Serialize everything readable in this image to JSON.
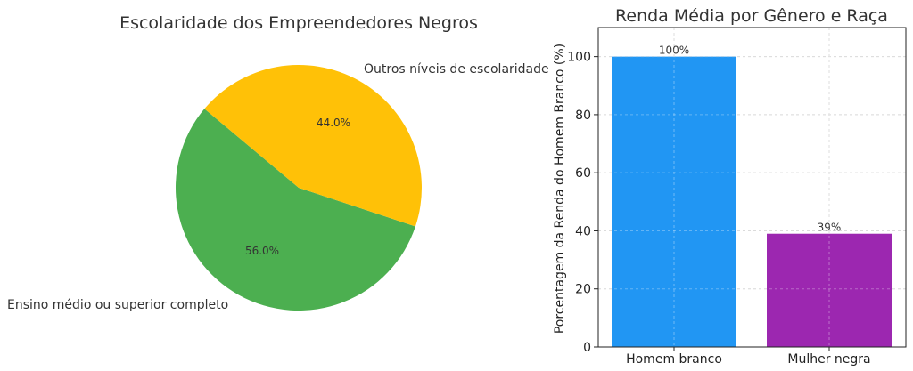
{
  "chart_data": [
    {
      "type": "pie",
      "title": "Escolaridade dos Empreendedores Negros",
      "labels": [
        "Ensino médio ou superior completo",
        "Outros níveis de escolaridade"
      ],
      "values": [
        56.0,
        44.0
      ],
      "value_labels": [
        "56.0%",
        "44.0%"
      ],
      "colors": [
        "#4CAF50",
        "#FFC107"
      ]
    },
    {
      "type": "bar",
      "title": "Renda Média por Gênero e Raça",
      "categories": [
        "Homem branco",
        "Mulher negra"
      ],
      "values": [
        100,
        39
      ],
      "value_labels": [
        "100%",
        "39%"
      ],
      "colors": [
        "#2196F3",
        "#9C27B0"
      ],
      "xlabel": "",
      "ylabel": "Porcentagem da Renda do Homem Branco (%)",
      "ylim": [
        0,
        110
      ],
      "yticks": [
        0,
        20,
        40,
        60,
        80,
        100
      ],
      "grid": true
    }
  ]
}
